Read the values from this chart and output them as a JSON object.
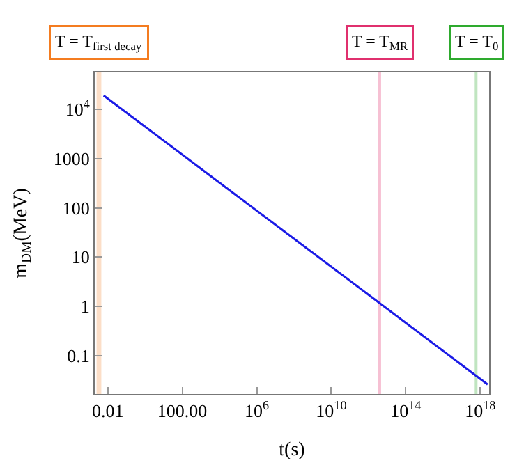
{
  "chart_data": {
    "type": "line",
    "xlabel": "t(s)",
    "ylabel": "m$_{DM}$(MeV)",
    "log": "xy",
    "x": [
      0.006,
      2.5e+18
    ],
    "series": [
      {
        "color": "#1a1ae6",
        "values": [
          19000,
          0.026
        ]
      }
    ],
    "xlim": [
      0.002,
      3e+18
    ],
    "ylim": [
      0.0166,
      56000
    ],
    "xticks": [
      0.01,
      {
        "value": 100,
        "label": "100.00"
      },
      {
        "value": 1000000.0,
        "label": "10$^{6}$"
      },
      {
        "value": 10000000000.0,
        "label": "10$^{10}$"
      },
      {
        "value": 100000000000000.0,
        "label": "10$^{14}$"
      },
      {
        "value": 1e+18,
        "label": "10$^{18}$"
      }
    ],
    "yticks": [
      0.1,
      1,
      10,
      100,
      1000,
      {
        "value": 10000,
        "label": "10$^{4}$"
      }
    ],
    "grid": false,
    "marker": "none",
    "line_style": "solid",
    "bands": [
      {
        "axis": "x",
        "from": 0.0025,
        "to": 0.0045,
        "label": "T = T$_{first decay}$",
        "color": "#f47c20"
      }
    ],
    "ref_lines": [
      {
        "axis": "x",
        "value": 4000000000000.0,
        "label": "T = T$_{MR}$",
        "color": "#e0306e"
      },
      {
        "axis": "x",
        "value": 6e+17,
        "label": "T = T$_{0}$",
        "color": "#2eaa2e"
      }
    ]
  }
}
